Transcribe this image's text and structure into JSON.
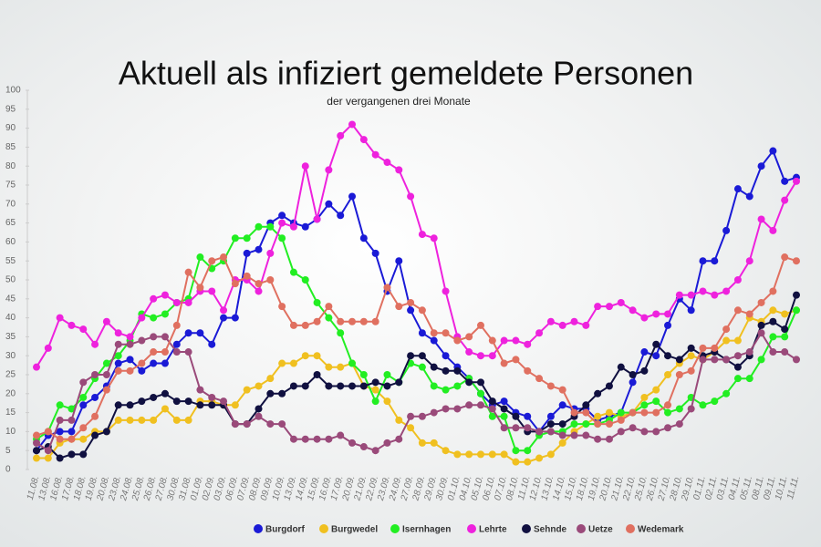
{
  "chart_data": {
    "type": "line",
    "title": "Aktuell als infiziert gemeldete Personen",
    "subtitle": "der vergangenen drei Monate",
    "categories": [
      "11.08.",
      "13.08.",
      "16.08.",
      "17.08.",
      "18.08.",
      "19.08.",
      "20.08.",
      "23.08.",
      "24.08.",
      "25.08.",
      "26.08.",
      "27.08.",
      "30.08.",
      "31.08.",
      "01.09.",
      "02.09.",
      "03.09.",
      "06.09.",
      "07.09.",
      "08.09.",
      "09.09.",
      "10.09.",
      "13.09.",
      "14.09.",
      "15.09.",
      "16.09.",
      "17.09.",
      "20.09.",
      "21.09.",
      "22.09.",
      "23.09.",
      "24.09.",
      "27.09.",
      "28.09.",
      "29.09.",
      "30.09.",
      "01.10.",
      "04.10.",
      "05.10.",
      "06.10.",
      "07.10.",
      "08.10.",
      "11.10.",
      "12.10.",
      "13.10.",
      "14.10.",
      "15.10.",
      "18.10.",
      "19.10.",
      "20.10.",
      "21.10.",
      "22.10.",
      "25.10.",
      "26.10.",
      "27.10.",
      "28.10.",
      "29.10.",
      "01.11.",
      "02.11.",
      "03.11.",
      "04.11.",
      "05.11.",
      "08.11.",
      "09.11.",
      "10.11.",
      "11.11."
    ],
    "series": [
      {
        "name": "Burgdorf",
        "color": "#1a1ad6",
        "values": [
          5,
          9,
          10,
          10,
          17,
          19,
          22,
          28,
          29,
          26,
          28,
          28,
          33,
          36,
          36,
          33,
          40,
          40,
          57,
          58,
          65,
          67,
          65,
          64,
          66,
          70,
          67,
          72,
          61,
          57,
          47,
          55,
          42,
          36,
          34,
          30,
          27,
          24,
          20,
          17,
          18,
          15,
          14,
          10,
          14,
          17,
          16,
          16,
          13,
          14,
          15,
          23,
          31,
          30,
          38,
          45,
          42,
          55,
          55,
          63,
          74,
          72,
          80,
          84,
          76,
          77
        ]
      },
      {
        "name": "Burgwedel",
        "color": "#f0c020",
        "values": [
          3,
          3,
          7,
          8,
          8,
          10,
          10,
          13,
          13,
          13,
          13,
          16,
          13,
          13,
          18,
          18,
          17,
          17,
          21,
          22,
          24,
          28,
          28,
          30,
          30,
          27,
          27,
          28,
          22,
          21,
          18,
          13,
          11,
          7,
          7,
          5,
          4,
          4,
          4,
          4,
          4,
          2,
          2,
          3,
          4,
          7,
          10,
          12,
          14,
          15,
          14,
          15,
          19,
          21,
          25,
          28,
          30,
          29,
          31,
          34,
          34,
          40,
          39,
          42,
          41,
          42
        ]
      },
      {
        "name": "Isernhagen",
        "color": "#22ee22",
        "values": [
          8,
          10,
          17,
          16,
          19,
          24,
          28,
          30,
          34,
          41,
          40,
          41,
          44,
          45,
          56,
          53,
          55,
          61,
          61,
          64,
          64,
          61,
          52,
          50,
          44,
          40,
          36,
          28,
          25,
          18,
          25,
          23,
          28,
          27,
          22,
          21,
          22,
          24,
          20,
          14,
          14,
          5,
          5,
          9,
          10,
          10,
          12,
          12,
          12,
          13,
          15,
          15,
          17,
          18,
          15,
          16,
          19,
          17,
          18,
          20,
          24,
          24,
          29,
          35,
          35,
          42
        ]
      },
      {
        "name": "Lehrte",
        "color": "#ee22dd",
        "values": [
          27,
          32,
          40,
          38,
          37,
          33,
          39,
          36,
          35,
          40,
          45,
          46,
          44,
          44,
          47,
          47,
          42,
          50,
          50,
          47,
          57,
          65,
          64,
          80,
          66,
          79,
          88,
          91,
          87,
          83,
          81,
          79,
          72,
          62,
          61,
          47,
          35,
          31,
          30,
          30,
          34,
          34,
          33,
          36,
          39,
          38,
          39,
          38,
          43,
          43,
          44,
          42,
          40,
          41,
          41,
          46,
          46,
          47,
          46,
          47,
          50,
          55,
          66,
          63,
          71,
          76
        ]
      },
      {
        "name": "Sehnde",
        "color": "#101040",
        "values": [
          5,
          6,
          3,
          4,
          4,
          9,
          10,
          17,
          17,
          18,
          19,
          20,
          18,
          18,
          17,
          17,
          17,
          12,
          12,
          16,
          20,
          20,
          22,
          22,
          25,
          22,
          22,
          22,
          22,
          23,
          22,
          23,
          30,
          30,
          27,
          26,
          26,
          23,
          23,
          18,
          16,
          14,
          10,
          10,
          12,
          12,
          14,
          17,
          20,
          22,
          27,
          25,
          26,
          33,
          30,
          29,
          32,
          30,
          31,
          29,
          27,
          30,
          38,
          39,
          37,
          46
        ]
      },
      {
        "name": "Uetze",
        "color": "#9a4a7a",
        "values": [
          7,
          5,
          13,
          13,
          23,
          25,
          25,
          33,
          33,
          34,
          35,
          35,
          31,
          31,
          21,
          19,
          18,
          12,
          12,
          14,
          12,
          12,
          8,
          8,
          8,
          8,
          9,
          7,
          6,
          5,
          7,
          8,
          14,
          14,
          15,
          16,
          16,
          17,
          17,
          16,
          11,
          11,
          11,
          10,
          10,
          9,
          9,
          9,
          8,
          8,
          10,
          11,
          10,
          10,
          11,
          12,
          16,
          29,
          29,
          29,
          30,
          31,
          36,
          31,
          31,
          29
        ]
      },
      {
        "name": "Wedemark",
        "color": "#e07060",
        "values": [
          9,
          10,
          8,
          8,
          11,
          14,
          21,
          26,
          26,
          28,
          31,
          31,
          38,
          52,
          48,
          55,
          56,
          49,
          51,
          49,
          50,
          43,
          38,
          38,
          39,
          43,
          39,
          39,
          39,
          39,
          48,
          43,
          44,
          42,
          36,
          36,
          34,
          35,
          38,
          34,
          28,
          29,
          26,
          24,
          22,
          21,
          15,
          15,
          12,
          12,
          13,
          15,
          15,
          15,
          17,
          25,
          26,
          32,
          32,
          37,
          42,
          41,
          44,
          47,
          56,
          55
        ]
      }
    ],
    "ylim": [
      0,
      100
    ],
    "yticks": [
      0,
      5,
      10,
      15,
      20,
      25,
      30,
      35,
      40,
      45,
      50,
      55,
      60,
      65,
      70,
      75,
      80,
      85,
      90,
      95,
      100
    ],
    "legend": "bottom"
  }
}
